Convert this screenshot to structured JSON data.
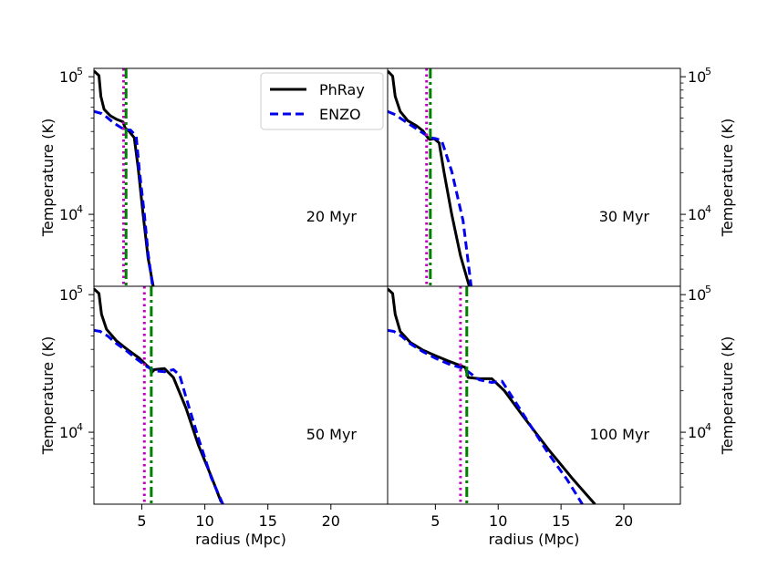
{
  "chart_data": {
    "type": "line",
    "layout": "2x2 panels, shared axes",
    "xlabel": "radius (Mpc)",
    "ylabel": "Temperature (K)",
    "yscale": "log",
    "xlim": [
      1.2,
      24.5
    ],
    "ylim": [
      3000,
      115000
    ],
    "x_ticks": [
      5,
      10,
      15,
      20
    ],
    "x_tick_labels": [
      "5",
      "10",
      "15",
      "20"
    ],
    "y_ticks": [
      10000,
      100000
    ],
    "y_tick_labels": [
      {
        "base": "10",
        "exp": "4"
      },
      {
        "base": "10",
        "exp": "5"
      }
    ],
    "grid": false,
    "legend": {
      "placement": "top-right of top-left panel",
      "entries": [
        {
          "label": "PhRay",
          "color": "#000000",
          "style": "solid"
        },
        {
          "label": "ENZO",
          "color": "#0000ee",
          "style": "dashed"
        }
      ]
    },
    "colors": {
      "phray": "#000000",
      "enzo": "#0000ee",
      "enzo_front": "#008000",
      "phray_front": "#bf00bf"
    },
    "panels": [
      {
        "label": "20 Myr",
        "fronts": {
          "magenta_dotted": 3.55,
          "green_dashdot": 3.75
        },
        "series": [
          {
            "name": "PhRay",
            "x": [
              1.2,
              1.6,
              1.75,
              2.0,
              2.5,
              3.0,
              3.5,
              3.7,
              3.9,
              4.4,
              4.7,
              5.1,
              5.5,
              5.9
            ],
            "y": [
              110000,
              102000,
              72000,
              58000,
              52000,
              49000,
              47000,
              42000,
              41000,
              36000,
              22000,
              10000,
              4800,
              3000
            ]
          },
          {
            "name": "ENZO",
            "x": [
              1.2,
              1.8,
              2.2,
              2.8,
              3.3,
              3.7,
              4.1,
              4.55,
              4.8,
              5.2,
              5.5,
              5.85
            ],
            "y": [
              56000,
              54000,
              51000,
              46000,
              43000,
              41000,
              41000,
              37000,
              21000,
              10000,
              5200,
              3000
            ]
          }
        ]
      },
      {
        "label": "30 Myr",
        "fronts": {
          "magenta_dotted": 4.3,
          "green_dashdot": 4.6
        },
        "series": [
          {
            "name": "PhRay",
            "x": [
              1.2,
              1.6,
              1.8,
              2.2,
              2.8,
              3.5,
              4.0,
              4.4,
              4.55,
              4.9,
              5.3,
              5.7,
              6.3,
              7.0,
              7.7
            ],
            "y": [
              110000,
              101000,
              72000,
              56000,
              48000,
              44000,
              40500,
              36000,
              35000,
              35500,
              33000,
              20000,
              10000,
              5000,
              3000
            ]
          },
          {
            "name": "ENZO",
            "x": [
              1.2,
              1.8,
              2.5,
              3.3,
              4.0,
              4.6,
              5.0,
              5.5,
              6.3,
              7.2,
              7.85
            ],
            "y": [
              56000,
              53000,
              48000,
              43000,
              39000,
              36000,
              35500,
              34500,
              20500,
              9000,
              3000
            ]
          }
        ]
      },
      {
        "label": "50 Myr",
        "fronts": {
          "magenta_dotted": 5.2,
          "green_dashdot": 5.75
        },
        "series": [
          {
            "name": "PhRay",
            "x": [
              1.2,
              1.6,
              1.8,
              2.2,
              3.0,
              4.0,
              4.8,
              5.4,
              5.7,
              5.75,
              6.0,
              6.8,
              7.5,
              8.5,
              9.5,
              10.5,
              11.3
            ],
            "y": [
              110000,
              102000,
              72000,
              56000,
              46000,
              39000,
              34500,
              30500,
              29000,
              27000,
              28500,
              29000,
              25000,
              15000,
              8000,
              4800,
              3100
            ]
          },
          {
            "name": "ENZO",
            "x": [
              1.2,
              1.7,
              2.3,
              3.0,
              3.8,
              4.6,
              5.4,
              6.0,
              6.8,
              7.5,
              8.0,
              8.5,
              9.5,
              10.5,
              11.5
            ],
            "y": [
              55000,
              54000,
              50000,
              44000,
              39000,
              34000,
              30000,
              28000,
              27500,
              28500,
              26000,
              18000,
              9000,
              4700,
              2900
            ]
          }
        ]
      },
      {
        "label": "100 Myr",
        "fronts": {
          "magenta_dotted": 7.0,
          "green_dashdot": 7.5
        },
        "series": [
          {
            "name": "PhRay",
            "x": [
              1.2,
              1.6,
              1.8,
              2.2,
              3.0,
              4.0,
              5.0,
              6.0,
              7.0,
              7.4,
              7.6,
              8.5,
              9.5,
              10.5,
              12.0,
              14.0,
              16.0,
              17.7
            ],
            "y": [
              110000,
              102000,
              72000,
              54000,
              45000,
              39500,
              36000,
              33000,
              30500,
              29500,
              25000,
              24500,
              24500,
              20000,
              13000,
              7500,
              4500,
              3000
            ]
          },
          {
            "name": "ENZO",
            "x": [
              1.2,
              1.7,
              2.3,
              3.0,
              4.0,
              5.0,
              6.0,
              7.0,
              7.5,
              8.5,
              9.5,
              10.3,
              12.0,
              14.0,
              15.5,
              16.7
            ],
            "y": [
              55000,
              54000,
              50000,
              44000,
              38500,
              34500,
              31500,
              29500,
              28000,
              24000,
              23000,
              23500,
              13500,
              7000,
              4500,
              3000
            ]
          }
        ]
      }
    ]
  }
}
